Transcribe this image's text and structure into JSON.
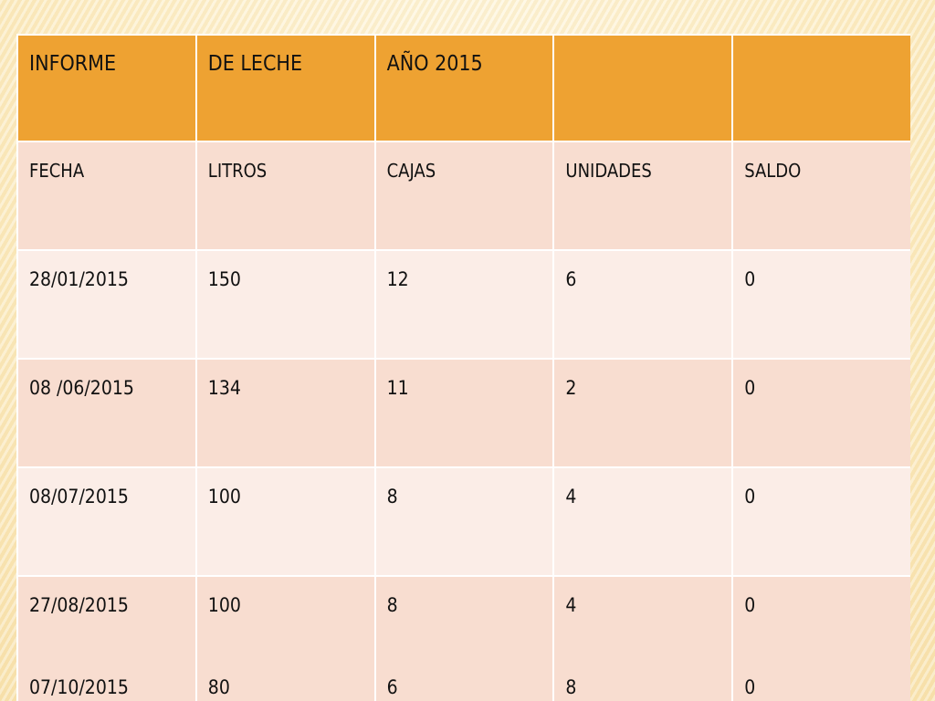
{
  "title_row": [
    "INFORME",
    "DE  LECHE",
    "AÑO   2015",
    "",
    ""
  ],
  "header_row": [
    "FECHA",
    "LITROS",
    "CAJAS",
    "UNIDADES",
    "SALDO"
  ],
  "rows": [
    [
      "28/01/2015",
      "150",
      "12",
      "6",
      "0"
    ],
    [
      "08 /06/2015",
      "134",
      "11",
      "2",
      "0"
    ],
    [
      "08/07/2015",
      "100",
      "8",
      "4",
      "0"
    ]
  ],
  "last_row": {
    "first": [
      "27/08/2015",
      "100",
      "8",
      "4",
      "0"
    ],
    "second": [
      "07/10/2015",
      "80",
      "6",
      "8",
      "0"
    ]
  },
  "colors": {
    "title_fill": "#eea232",
    "band_dark": "#f8ddd0",
    "band_light": "#fbede7",
    "background": "#fcefc8"
  }
}
